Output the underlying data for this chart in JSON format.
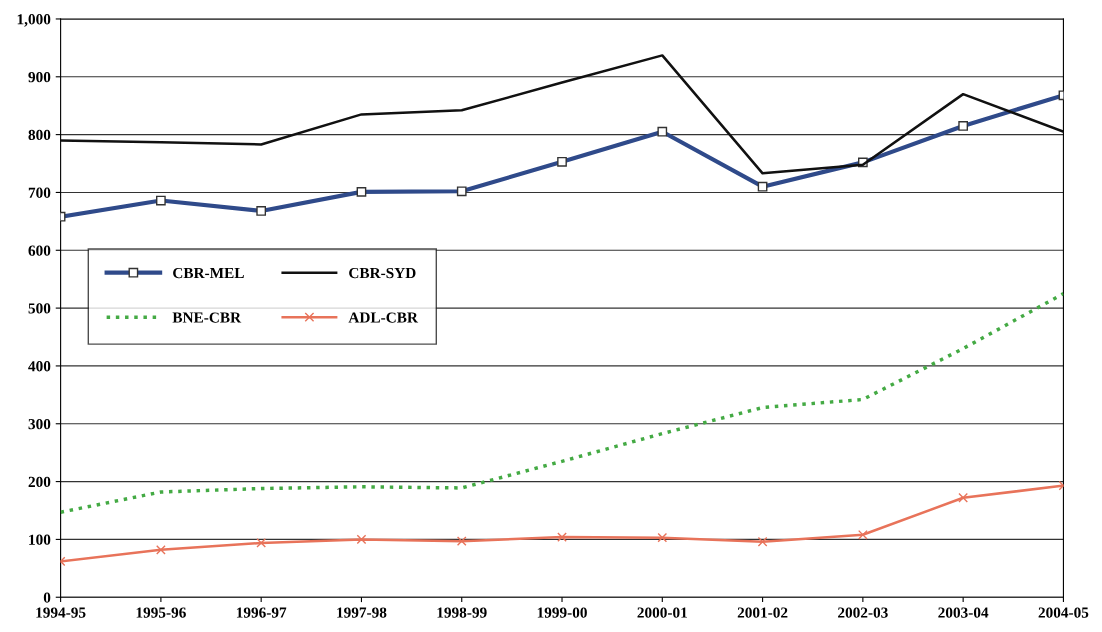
{
  "chart_data": {
    "type": "line",
    "categories": [
      "1994-95",
      "1995-96",
      "1996-97",
      "1997-98",
      "1998-99",
      "1999-00",
      "2000-01",
      "2001-02",
      "2002-03",
      "2003-04",
      "2004-05"
    ],
    "series": [
      {
        "name": "CBR-MEL",
        "color": "#2f4a8a",
        "marker": "square",
        "line_style": "solid",
        "values": [
          658,
          686,
          668,
          701,
          702,
          753,
          805,
          710,
          752,
          815,
          868
        ]
      },
      {
        "name": "CBR-SYD",
        "color": "#111111",
        "marker": "none",
        "line_style": "solid",
        "values": [
          790,
          787,
          783,
          835,
          842,
          890,
          937,
          733,
          748,
          870,
          805
        ]
      },
      {
        "name": "BNE-CBR",
        "color": "#44aa44",
        "marker": "none",
        "line_style": "dotted",
        "values": [
          147,
          182,
          188,
          191,
          189,
          235,
          283,
          328,
          342,
          430,
          525
        ]
      },
      {
        "name": "ADL-CBR",
        "color": "#e8735a",
        "marker": "cross",
        "line_style": "solid",
        "values": [
          62,
          82,
          94,
          100,
          97,
          104,
          103,
          96,
          108,
          172,
          193
        ]
      }
    ],
    "ylim": [
      0,
      1000
    ],
    "yticks": [
      0,
      100,
      200,
      300,
      400,
      500,
      600,
      700,
      800,
      900,
      {
        "value": 1000,
        "label": "1,000"
      }
    ],
    "grid": "y",
    "legend": "center left"
  }
}
